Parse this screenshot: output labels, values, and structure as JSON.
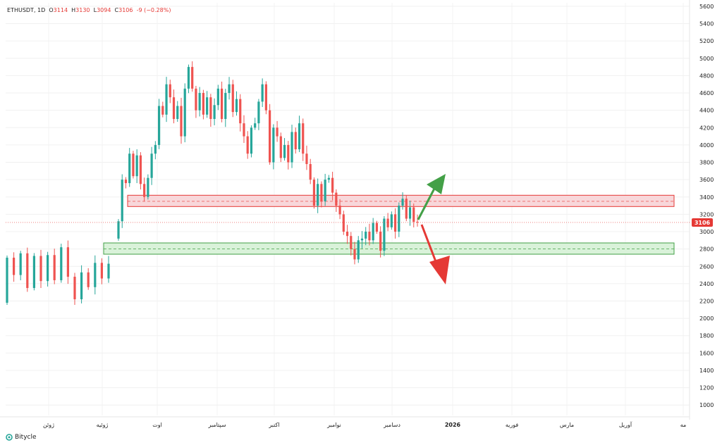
{
  "header": {
    "symbol": "ETHUSDT, 1D",
    "o_label": "O",
    "o_value": "3114",
    "h_label": "H",
    "h_value": "3130",
    "l_label": "L",
    "l_value": "3094",
    "c_label": "C",
    "c_value": "3106",
    "change": "-9 (−0.28%)"
  },
  "footer": {
    "brand": "Bitycle"
  },
  "colors": {
    "up": "#26a69a",
    "down": "#ef5350",
    "resistance_fill": "#f8d7da",
    "resistance_border": "#e53935",
    "support_fill": "#d9f2d9",
    "support_border": "#43a047",
    "arrow_up": "#43a047",
    "arrow_down": "#e53935",
    "price_label_bg": "#e53935"
  },
  "chart_data": {
    "type": "candlestick",
    "y_ticks": [
      "5600",
      "5400",
      "5200",
      "5000",
      "4800",
      "4600",
      "4400",
      "4200",
      "4000",
      "3800",
      "3600",
      "3400",
      "3200",
      "3000",
      "2800",
      "2600",
      "2400",
      "2200",
      "2000",
      "1800",
      "1600",
      "1400",
      "1200",
      "1000"
    ],
    "ylim": [
      880,
      5640
    ],
    "x_labels": [
      "ژوئن",
      "ژوئیه",
      "اوت",
      "سپتامبر",
      "اکتبر",
      "نوامبر",
      "دسامبر",
      "2026",
      "فوریه",
      "مارس",
      "آوریل",
      "مه"
    ],
    "last_price": "3106",
    "zones": [
      {
        "name": "resistance",
        "low": 3290,
        "high": 3420,
        "mid": 3350
      },
      {
        "name": "support",
        "low": 2740,
        "high": 2870,
        "mid": 2800
      }
    ],
    "segments": [
      [
        2180,
        2700
      ],
      [
        2700,
        2500
      ],
      [
        2500,
        2750
      ],
      [
        2750,
        2350
      ],
      [
        2350,
        2720
      ],
      [
        2720,
        2430
      ],
      [
        2430,
        2730
      ],
      [
        2730,
        2440
      ],
      [
        2440,
        2820
      ],
      [
        2820,
        2480
      ],
      [
        2480,
        2220
      ],
      [
        2220,
        2530
      ],
      [
        2530,
        2360
      ],
      [
        2360,
        2640
      ],
      [
        2640,
        2460
      ],
      [
        2460,
        2630
      ],
      [
        2920,
        3120
      ],
      [
        3120,
        3600
      ],
      [
        3600,
        3560
      ],
      [
        3560,
        3900
      ],
      [
        3900,
        3640
      ],
      [
        3640,
        3880
      ],
      [
        3880,
        3550
      ],
      [
        3550,
        3400
      ],
      [
        3400,
        3620
      ],
      [
        3620,
        3900
      ],
      [
        3900,
        4000
      ],
      [
        4000,
        4450
      ],
      [
        4450,
        4350
      ],
      [
        4350,
        4700
      ],
      [
        4700,
        4550
      ],
      [
        4550,
        4300
      ],
      [
        4300,
        4450
      ],
      [
        4450,
        4100
      ],
      [
        4100,
        4650
      ],
      [
        4650,
        4900
      ],
      [
        4900,
        4650
      ],
      [
        4650,
        4400
      ],
      [
        4400,
        4600
      ],
      [
        4600,
        4350
      ],
      [
        4350,
        4550
      ],
      [
        4550,
        4300
      ],
      [
        4300,
        4460
      ],
      [
        4460,
        4650
      ],
      [
        4650,
        4300
      ],
      [
        4300,
        4600
      ],
      [
        4600,
        4700
      ],
      [
        4700,
        4380
      ],
      [
        4380,
        4530
      ],
      [
        4530,
        4250
      ],
      [
        4250,
        4100
      ],
      [
        4100,
        3900
      ],
      [
        3900,
        4200
      ],
      [
        4200,
        4250
      ],
      [
        4250,
        4500
      ],
      [
        4500,
        4700
      ],
      [
        4700,
        4400
      ],
      [
        4400,
        3800
      ],
      [
        3800,
        4200
      ],
      [
        4200,
        4100
      ],
      [
        4100,
        3850
      ],
      [
        3850,
        4000
      ],
      [
        4000,
        3800
      ],
      [
        3800,
        4150
      ],
      [
        4150,
        3950
      ],
      [
        3950,
        4250
      ],
      [
        4250,
        3900
      ],
      [
        3900,
        3780
      ],
      [
        3780,
        3600
      ],
      [
        3600,
        3300
      ],
      [
        3300,
        3550
      ],
      [
        3550,
        3350
      ],
      [
        3350,
        3600
      ],
      [
        3600,
        3620
      ],
      [
        3620,
        3450
      ],
      [
        3450,
        3300
      ],
      [
        3300,
        3200
      ],
      [
        3200,
        3000
      ],
      [
        3000,
        2950
      ],
      [
        2950,
        2800
      ],
      [
        2800,
        2680
      ],
      [
        2680,
        2900
      ],
      [
        2900,
        2920
      ],
      [
        2920,
        3000
      ],
      [
        3000,
        2900
      ],
      [
        2900,
        3100
      ],
      [
        3100,
        3000
      ],
      [
        3000,
        2780
      ],
      [
        2780,
        3150
      ],
      [
        3150,
        3050
      ],
      [
        3050,
        3200
      ],
      [
        3200,
        3000
      ],
      [
        3000,
        3300
      ],
      [
        3300,
        3380
      ],
      [
        3380,
        3150
      ],
      [
        3150,
        3280
      ],
      [
        3280,
        3114
      ],
      [
        3114,
        3106
      ]
    ]
  }
}
